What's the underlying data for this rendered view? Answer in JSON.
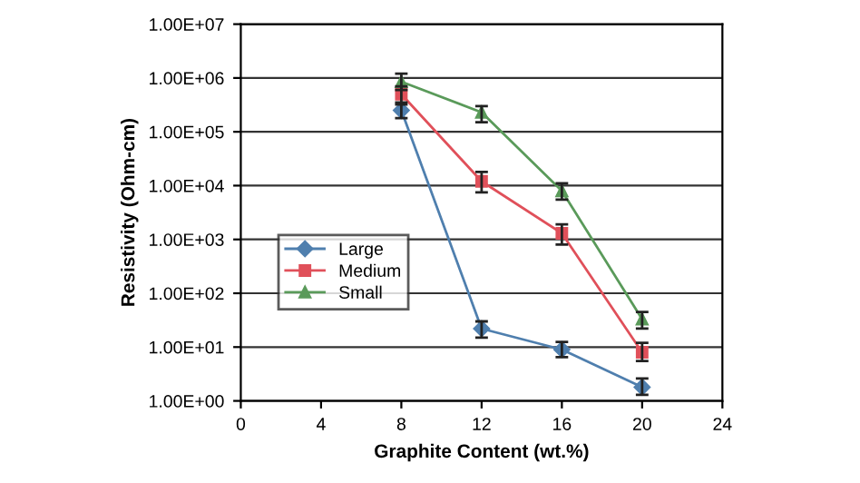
{
  "chart_data": {
    "type": "line",
    "xlabel": "Graphite Content (wt.%)",
    "ylabel": "Resistivity (Ohm-cm)",
    "log": "y",
    "xlim": [
      0,
      24
    ],
    "xticks": [
      0,
      4,
      8,
      12,
      16,
      20,
      24
    ],
    "ylim": [
      1,
      10000000
    ],
    "yticks": [
      {
        "value": 1,
        "label": "1.00E+00"
      },
      {
        "value": 10,
        "label": "1.00E+01"
      },
      {
        "value": 100,
        "label": "1.00E+02"
      },
      {
        "value": 1000,
        "label": "1.00E+03"
      },
      {
        "value": 10000,
        "label": "1.00E+04"
      },
      {
        "value": 100000,
        "label": "1.00E+05"
      },
      {
        "value": 1000000,
        "label": "1.00E+06"
      },
      {
        "value": 10000000,
        "label": "1.00E+07"
      }
    ],
    "grid": "y",
    "legend": "left",
    "x": [
      8,
      12,
      16,
      20
    ],
    "series": [
      {
        "name": "Large",
        "color": "#4f7fae",
        "marker": "diamond",
        "values": [
          250000,
          22,
          9,
          1.8
        ],
        "errors": [
          [
            180000,
            320000
          ],
          [
            15,
            30
          ],
          [
            6.5,
            12.5
          ],
          [
            1.3,
            2.6
          ]
        ]
      },
      {
        "name": "Medium",
        "color": "#e0505a",
        "marker": "square",
        "values": [
          500000,
          12000,
          1300,
          8
        ],
        "errors": [
          [
            350000,
            700000
          ],
          [
            7500,
            18000
          ],
          [
            800,
            1900
          ],
          [
            5.5,
            12
          ]
        ]
      },
      {
        "name": "Small",
        "color": "#5a9a5a",
        "marker": "triangle",
        "values": [
          850000,
          230000,
          8000,
          33
        ],
        "errors": [
          [
            600000,
            1200000
          ],
          [
            150000,
            300000
          ],
          [
            5500,
            11000
          ],
          [
            22,
            45
          ]
        ]
      }
    ]
  }
}
